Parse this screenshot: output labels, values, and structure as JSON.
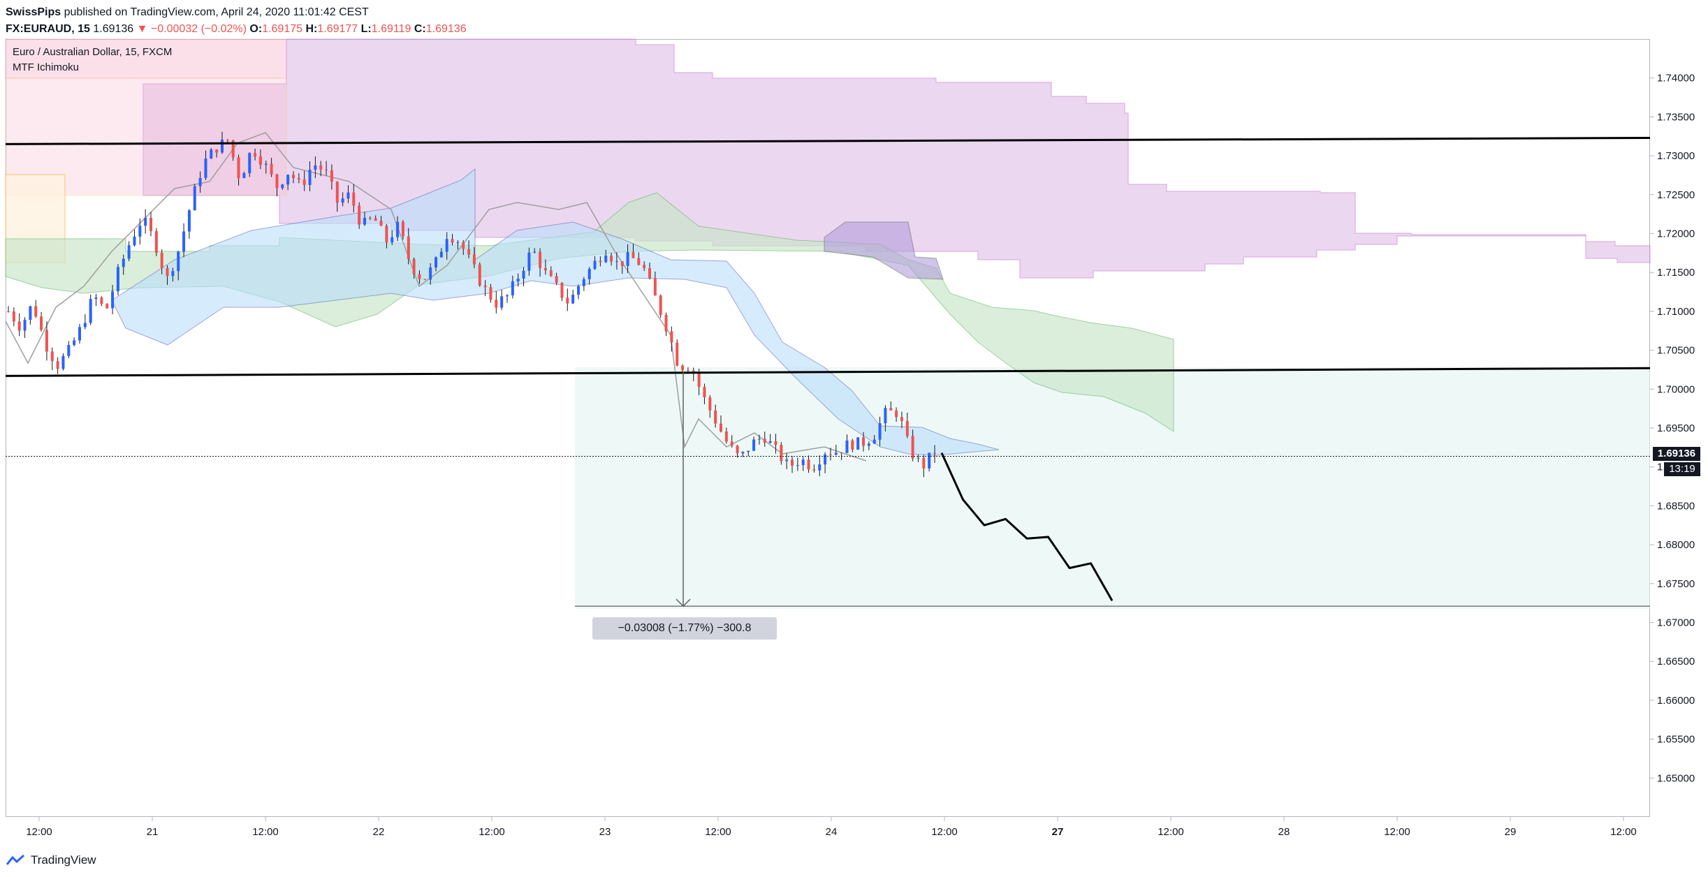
{
  "header": {
    "author": "SwissPips",
    "published": "published on TradingView.com, April 24, 2020 11:01:42 CEST",
    "symbol": "FX:EURAUD, 15",
    "last": "1.69136",
    "change": "▼ −0.00032 (−0.02%)",
    "o_label": "O:",
    "o_value": "1.69175",
    "h_label": "H:",
    "h_value": "1.69177",
    "l_label": "L:",
    "l_value": "1.69119",
    "c_label": "C:",
    "c_value": "1.69136"
  },
  "legend": {
    "title": "Euro / Australian Dollar, 15, FXCM",
    "indicator": "MTF Ichimoku"
  },
  "badges": {
    "price": "1.69136",
    "countdown": "13:19"
  },
  "measure_label": "−0.03008 (−1.77%) −300.8",
  "footer": {
    "brand": "TradingView"
  },
  "colors": {
    "up": "#2962ff",
    "down": "#ef5350",
    "cloud_purple": "#e1bee7",
    "cloud_green": "#c8e6c9",
    "cloud_blue": "#bbdefb",
    "projection_zone": "#e0f2f1",
    "lagging": "#9e9e9e"
  },
  "chart_data": {
    "type": "candlestick",
    "symbol": "EURAUD",
    "interval": "15",
    "ylim": [
      1.645,
      1.745
    ],
    "y_ticks": [
      "1.74000",
      "1.73500",
      "1.73000",
      "1.72500",
      "1.72000",
      "1.71500",
      "1.71000",
      "1.70500",
      "1.70000",
      "1.69500",
      "1.69000",
      "1.68500",
      "1.68000",
      "1.67500",
      "1.67000",
      "1.66500",
      "1.66000",
      "1.65500",
      "1.65000"
    ],
    "x_ticks": [
      "12:00",
      "21",
      "12:00",
      "22",
      "12:00",
      "23",
      "12:00",
      "24",
      "12:00",
      "27",
      "12:00",
      "28",
      "12:00",
      "29",
      "12:00"
    ],
    "x_ticks_bold": [
      "27"
    ],
    "price_path": [
      1.71,
      1.708,
      1.711,
      1.706,
      1.703,
      1.705,
      1.708,
      1.712,
      1.71,
      1.715,
      1.719,
      1.722,
      1.719,
      1.714,
      1.718,
      1.724,
      1.729,
      1.731,
      1.732,
      1.727,
      1.731,
      1.729,
      1.726,
      1.728,
      1.726,
      1.729,
      1.728,
      1.724,
      1.725,
      1.721,
      1.722,
      1.719,
      1.721,
      1.716,
      1.714,
      1.716,
      1.72,
      1.719,
      1.716,
      1.713,
      1.711,
      1.712,
      1.715,
      1.718,
      1.715,
      1.713,
      1.711,
      1.714,
      1.716,
      1.718,
      1.716,
      1.717,
      1.716,
      1.712,
      1.708,
      1.703,
      1.703,
      1.699,
      1.696,
      1.693,
      1.691,
      1.693,
      1.694,
      1.692,
      1.69,
      1.691,
      1.69,
      1.692,
      1.692,
      1.693,
      1.693,
      1.694,
      1.697,
      1.697,
      1.692,
      1.69,
      1.692
    ],
    "support_line": [
      1.7017,
      1.7027
    ],
    "resistance_line": [
      1.7315,
      1.7323
    ],
    "current_price": 1.69136,
    "measure": {
      "from": 1.7022,
      "to": 1.6721,
      "change": -0.03008,
      "percent": -1.77,
      "pips": -300.8
    },
    "projection_path": [
      1.6918,
      1.6858,
      1.6825,
      1.6833,
      1.6808,
      1.681,
      1.677,
      1.6776,
      1.6728
    ]
  }
}
